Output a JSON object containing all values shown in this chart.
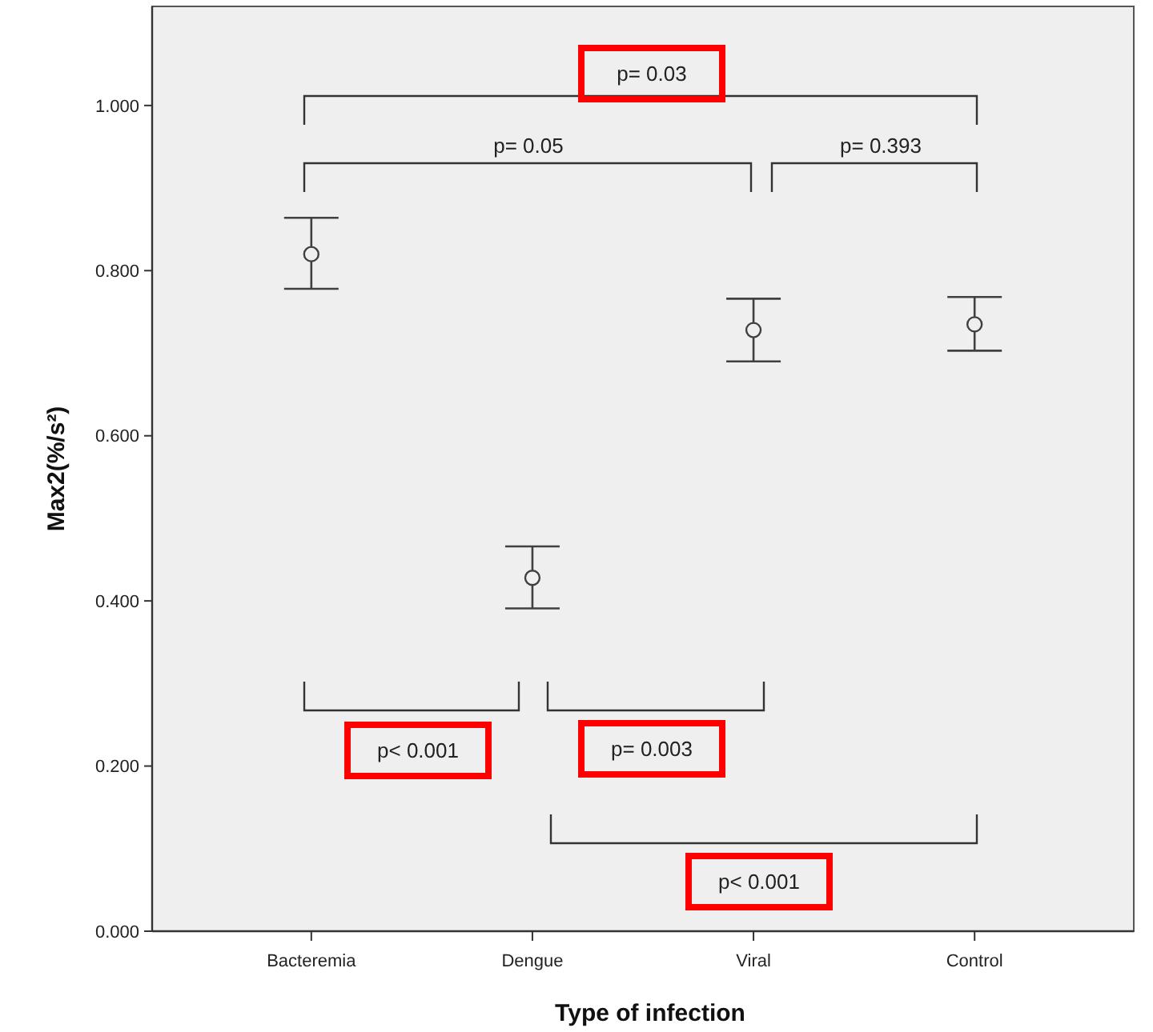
{
  "chart_data": {
    "type": "scatter",
    "xlabel": "Type of infection",
    "ylabel": "Max2(%/s²)",
    "categories": [
      "Bacteremia",
      "Dengue",
      "Viral",
      "Control"
    ],
    "values": [
      0.82,
      0.428,
      0.728,
      0.735
    ],
    "errors": [
      [
        0.778,
        0.864
      ],
      [
        0.391,
        0.466
      ],
      [
        0.69,
        0.766
      ],
      [
        0.703,
        0.768
      ]
    ],
    "color": "#404040",
    "marker": "circle",
    "grid": false,
    "ylim": [
      0,
      1.12
    ],
    "yticks": [
      {
        "value": 0,
        "label": "0.000"
      },
      {
        "value": 0.2,
        "label": "0.200"
      },
      {
        "value": 0.4,
        "label": "0.400"
      },
      {
        "value": 0.6,
        "label": "0.600"
      },
      {
        "value": 0.8,
        "label": "0.800"
      },
      {
        "value": 1,
        "label": "1.000"
      }
    ],
    "annotations": [
      "p= 0.03",
      "p= 0.05",
      "p= 0.393",
      "p< 0.001",
      "p= 0.003",
      "p< 0.001"
    ]
  }
}
